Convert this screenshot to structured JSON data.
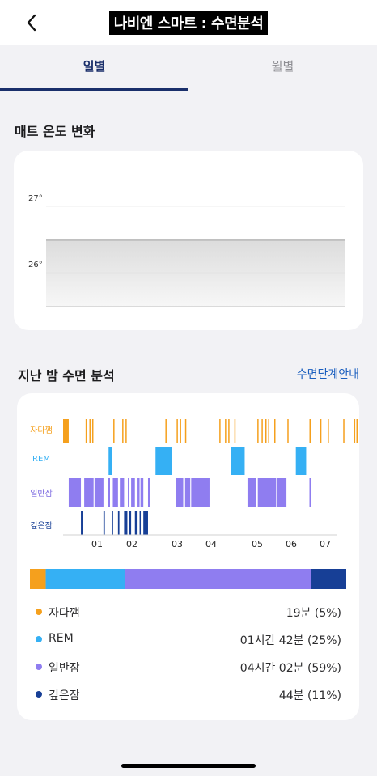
{
  "header": {
    "title": "나비엔 스마트 : 수면분석",
    "back_icon": "chevron-left-icon"
  },
  "tabs": [
    {
      "label": "일별",
      "active": true
    },
    {
      "label": "월별",
      "active": false
    }
  ],
  "temperature": {
    "section_title": "매트 온도 변화",
    "y_ticks": [
      "27°",
      "26°"
    ],
    "chart_data": {
      "type": "line",
      "ylim": [
        25.5,
        27.1
      ],
      "y_ticks": [
        27,
        26
      ],
      "series": [
        {
          "values": [
            26.5,
            26.5
          ]
        }
      ],
      "grid": true
    }
  },
  "sleep": {
    "section_title": "지난 밤 수면 분석",
    "guide_link": "수면단계안내",
    "stage_labels": [
      "자다깸",
      "REM",
      "일반잠",
      "깊은잠"
    ],
    "hour_labels": [
      "01",
      "02",
      "03",
      "04",
      "05",
      "06",
      "07"
    ],
    "colors": {
      "awake": "#f5a01d",
      "rem": "#35b0f4",
      "light": "#8f7df0",
      "deep": "#173f96"
    },
    "chart_data": {
      "type": "bar",
      "categories": [
        "자다깸",
        "REM",
        "일반잠",
        "깊은잠"
      ],
      "x_ticks": [
        "01",
        "02",
        "03",
        "04",
        "05",
        "06",
        "07"
      ],
      "segments": {
        "awake": [
          [
            0.0,
            0.12
          ],
          [
            0.48,
            0.49
          ],
          [
            0.56,
            0.57
          ],
          [
            0.62,
            0.63
          ],
          [
            1.07,
            1.08
          ],
          [
            1.26,
            1.27
          ],
          [
            1.33,
            1.34
          ],
          [
            2.18,
            2.19
          ],
          [
            2.42,
            2.43
          ],
          [
            2.49,
            2.5
          ],
          [
            2.6,
            2.61
          ],
          [
            3.33,
            3.34
          ],
          [
            3.45,
            3.46
          ],
          [
            3.52,
            3.53
          ],
          [
            3.65,
            3.66
          ],
          [
            4.14,
            4.15
          ],
          [
            4.23,
            4.24
          ],
          [
            4.31,
            4.32
          ],
          [
            4.37,
            4.38
          ],
          [
            4.5,
            4.51
          ],
          [
            4.78,
            4.79
          ],
          [
            5.25,
            5.26
          ],
          [
            5.48,
            5.49
          ],
          [
            5.64,
            5.65
          ],
          [
            5.97,
            5.98
          ],
          [
            6.2,
            6.21
          ],
          [
            6.25,
            6.26
          ]
        ],
        "rem": [
          [
            0.97,
            1.04
          ],
          [
            1.97,
            2.32
          ],
          [
            3.57,
            3.87
          ],
          [
            4.96,
            5.18
          ]
        ],
        "light": [
          [
            0.12,
            0.38
          ],
          [
            0.45,
            0.65
          ],
          [
            0.67,
            0.86
          ],
          [
            0.96,
            1.0
          ],
          [
            1.06,
            1.17
          ],
          [
            1.21,
            1.3
          ],
          [
            1.38,
            1.4
          ],
          [
            1.45,
            1.53
          ],
          [
            1.57,
            1.63
          ],
          [
            1.65,
            1.71
          ],
          [
            1.81,
            1.85
          ],
          [
            2.4,
            2.56
          ],
          [
            2.6,
            2.71
          ],
          [
            2.73,
            3.12
          ],
          [
            3.93,
            4.11
          ],
          [
            4.15,
            4.54
          ],
          [
            4.56,
            4.76
          ],
          [
            5.25,
            5.27
          ]
        ],
        "deep": [
          [
            0.38,
            0.42
          ],
          [
            0.86,
            0.89
          ],
          [
            1.04,
            1.06
          ],
          [
            1.17,
            1.2
          ],
          [
            1.3,
            1.37
          ],
          [
            1.4,
            1.45
          ],
          [
            1.53,
            1.57
          ],
          [
            1.63,
            1.65
          ],
          [
            1.71,
            1.81
          ]
        ]
      },
      "distribution": [
        {
          "name": "자다깸",
          "percent": 5
        },
        {
          "name": "REM",
          "percent": 25
        },
        {
          "name": "일반잠",
          "percent": 59
        },
        {
          "name": "깊은잠",
          "percent": 11
        }
      ]
    },
    "legend": [
      {
        "label": "자다깸",
        "value": "19분 (5%)",
        "color": "#f5a01d"
      },
      {
        "label": "REM",
        "value": "01시간 42분 (25%)",
        "color": "#35b0f4"
      },
      {
        "label": "일반잠",
        "value": "04시간 02분 (59%)",
        "color": "#8f7df0"
      },
      {
        "label": "깊은잠",
        "value": "44분 (11%)",
        "color": "#173f96"
      }
    ]
  }
}
